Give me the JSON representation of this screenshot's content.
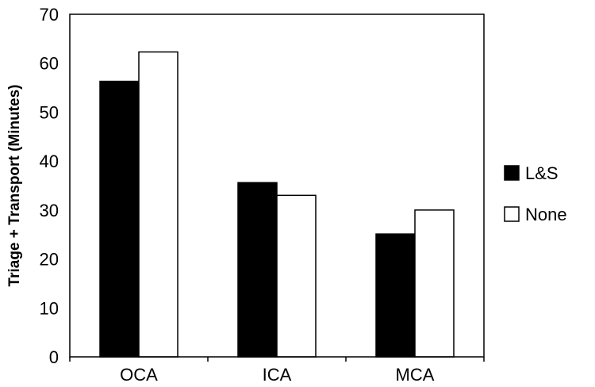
{
  "chart_data": {
    "type": "bar",
    "title": "",
    "xlabel": "",
    "ylabel": "Triage + Transport (Minutes)",
    "ylim": [
      0,
      70
    ],
    "yticks": [
      0,
      10,
      20,
      30,
      40,
      50,
      60,
      70
    ],
    "categories": [
      "OCA",
      "ICA",
      "MCA"
    ],
    "series": [
      {
        "name": "L&S",
        "values": [
          56.3,
          35.6,
          25.1
        ],
        "color": "#000000"
      },
      {
        "name": "None",
        "values": [
          62.3,
          33.0,
          30.0
        ],
        "color": "#ffffff"
      }
    ],
    "grid": false,
    "legend_position": "right"
  }
}
